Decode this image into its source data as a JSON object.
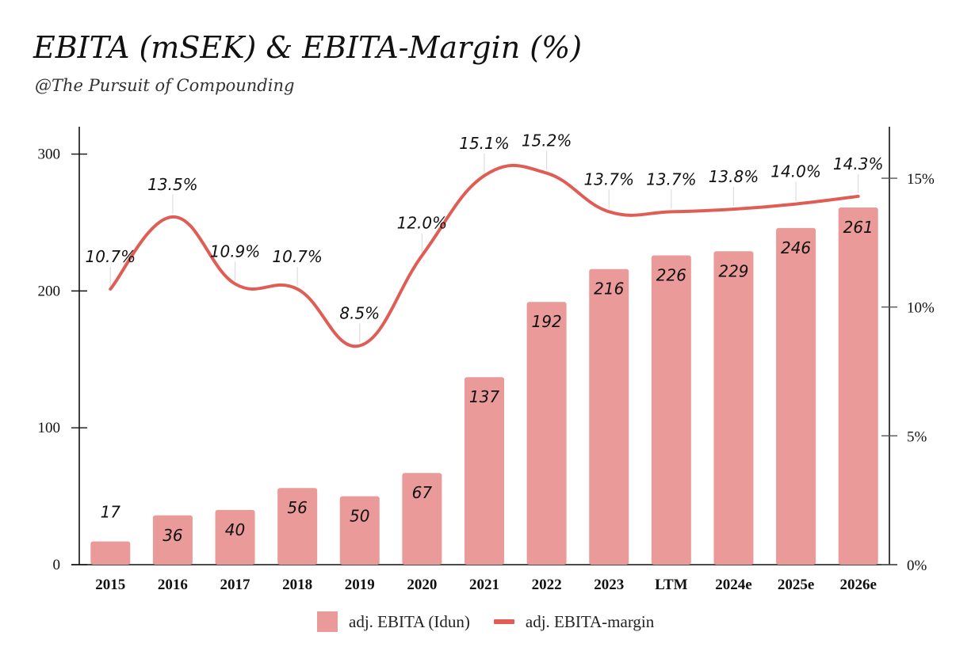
{
  "title": "EBITA (mSEK) & EBITA-Margin (%)",
  "subtitle": "@The Pursuit of Compounding",
  "colors": {
    "bar": "#e99a99",
    "line": "#e05d56",
    "axis": "#111111"
  },
  "chart_data": {
    "type": "bar",
    "categories": [
      "2015",
      "2016",
      "2017",
      "2018",
      "2019",
      "2020",
      "2021",
      "2022",
      "2023",
      "LTM",
      "2024e",
      "2025e",
      "2026e"
    ],
    "series": [
      {
        "name": "adj. EBITA (Idun)",
        "type": "bar",
        "axis": "left",
        "values": [
          17,
          36,
          40,
          56,
          50,
          67,
          137,
          192,
          216,
          226,
          229,
          246,
          261
        ],
        "labels": [
          "17",
          "36",
          "40",
          "56",
          "50",
          "67",
          "137",
          "192",
          "216",
          "226",
          "229",
          "246",
          "261"
        ]
      },
      {
        "name": "adj. EBITA-margin",
        "type": "line",
        "axis": "right",
        "values": [
          10.7,
          13.5,
          10.9,
          10.7,
          8.5,
          12.0,
          15.1,
          15.2,
          13.7,
          13.7,
          13.8,
          14.0,
          14.3
        ],
        "labels": [
          "10.7%",
          "13.5%",
          "10.9%",
          "10.7%",
          "8.5%",
          "12.0%",
          "15.1%",
          "15.2%",
          "13.7%",
          "13.7%",
          "13.8%",
          "14.0%",
          "14.3%"
        ]
      }
    ],
    "y_left": {
      "ylim": [
        0,
        320
      ],
      "ticks": [
        0,
        100,
        200,
        300
      ],
      "tick_labels": [
        "0",
        "100",
        "200",
        "300"
      ]
    },
    "y_right": {
      "ylim": [
        0,
        17
      ],
      "ticks": [
        0,
        5,
        10,
        15
      ],
      "tick_labels": [
        "0%",
        "5%",
        "10%",
        "15%"
      ]
    },
    "grid": false,
    "legend": "bottom-center"
  }
}
